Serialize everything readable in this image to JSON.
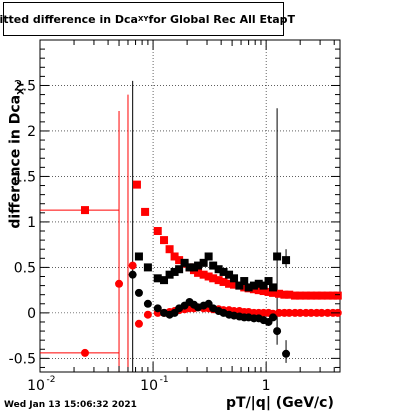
{
  "title": {
    "prefix": "Fitted difference in Dca",
    "subscript": "XY",
    "suffix": " for Global Rec All EtapT"
  },
  "timestamp": "Wed Jan 13 15:06:32 2021",
  "chart_data": {
    "type": "scatter",
    "title": "Fitted difference in Dca_XY for Global Rec All EtapT",
    "xlabel": "pT/|q| (GeV/c)",
    "ylabel_main": "difference in Dca",
    "ylabel_sub": "XY",
    "xscale": "log",
    "xlim": [
      0.01,
      4.5
    ],
    "ylim": [
      -0.65,
      3.0
    ],
    "grid": true,
    "x_ticks": [
      {
        "v": 0.01,
        "label": "10",
        "exp": "-2"
      },
      {
        "v": 0.1,
        "label": "10",
        "exp": "-1"
      },
      {
        "v": 1,
        "label": "1",
        "exp": ""
      }
    ],
    "y_ticks": [
      -0.5,
      0,
      0.5,
      1,
      1.5,
      2,
      2.5
    ],
    "series": [
      {
        "color": "#ff0000",
        "marker": "square",
        "points": [
          {
            "x": 0.025,
            "y": 1.13,
            "ex": [
              0.01,
              0.05
            ]
          },
          {
            "x": 0.072,
            "y": 1.41
          },
          {
            "x": 0.085,
            "y": 1.11
          },
          {
            "x": 0.11,
            "y": 0.9
          },
          {
            "x": 0.125,
            "y": 0.8
          },
          {
            "x": 0.14,
            "y": 0.7
          },
          {
            "x": 0.155,
            "y": 0.62
          },
          {
            "x": 0.17,
            "y": 0.58
          },
          {
            "x": 0.19,
            "y": 0.54
          },
          {
            "x": 0.21,
            "y": 0.5
          },
          {
            "x": 0.23,
            "y": 0.47
          },
          {
            "x": 0.25,
            "y": 0.44
          },
          {
            "x": 0.28,
            "y": 0.42
          },
          {
            "x": 0.31,
            "y": 0.4
          },
          {
            "x": 0.34,
            "y": 0.38
          },
          {
            "x": 0.38,
            "y": 0.36
          },
          {
            "x": 0.42,
            "y": 0.34
          },
          {
            "x": 0.47,
            "y": 0.32
          },
          {
            "x": 0.52,
            "y": 0.31
          },
          {
            "x": 0.58,
            "y": 0.3
          },
          {
            "x": 0.64,
            "y": 0.28
          },
          {
            "x": 0.7,
            "y": 0.27
          },
          {
            "x": 0.78,
            "y": 0.26
          },
          {
            "x": 0.86,
            "y": 0.25
          },
          {
            "x": 0.95,
            "y": 0.24
          },
          {
            "x": 1.05,
            "y": 0.23
          },
          {
            "x": 1.15,
            "y": 0.22
          },
          {
            "x": 1.3,
            "y": 0.21
          },
          {
            "x": 1.45,
            "y": 0.2
          },
          {
            "x": 1.6,
            "y": 0.2
          },
          {
            "x": 1.8,
            "y": 0.19
          },
          {
            "x": 2.0,
            "y": 0.19
          },
          {
            "x": 2.25,
            "y": 0.19
          },
          {
            "x": 2.5,
            "y": 0.19
          },
          {
            "x": 2.8,
            "y": 0.19
          },
          {
            "x": 3.1,
            "y": 0.19
          },
          {
            "x": 3.5,
            "y": 0.19
          },
          {
            "x": 3.9,
            "y": 0.19
          },
          {
            "x": 4.3,
            "y": 0.19
          }
        ]
      },
      {
        "color": "#ff0000",
        "marker": "circle",
        "points": [
          {
            "x": 0.025,
            "y": -0.44,
            "ex": [
              0.01,
              0.05
            ]
          },
          {
            "x": 0.05,
            "y": 0.32,
            "ey": [
              -0.65,
              2.22
            ]
          },
          {
            "x": 0.066,
            "y": 0.52
          },
          {
            "x": 0.075,
            "y": -0.12
          },
          {
            "x": 0.09,
            "y": -0.02
          },
          {
            "x": 0.11,
            "y": 0.0
          },
          {
            "x": 0.125,
            "y": 0.0
          },
          {
            "x": 0.14,
            "y": 0.01
          },
          {
            "x": 0.155,
            "y": 0.02
          },
          {
            "x": 0.17,
            "y": 0.03
          },
          {
            "x": 0.19,
            "y": 0.04
          },
          {
            "x": 0.21,
            "y": 0.05
          },
          {
            "x": 0.23,
            "y": 0.05
          },
          {
            "x": 0.25,
            "y": 0.06
          },
          {
            "x": 0.28,
            "y": 0.05
          },
          {
            "x": 0.31,
            "y": 0.05
          },
          {
            "x": 0.34,
            "y": 0.04
          },
          {
            "x": 0.38,
            "y": 0.04
          },
          {
            "x": 0.42,
            "y": 0.03
          },
          {
            "x": 0.47,
            "y": 0.03
          },
          {
            "x": 0.52,
            "y": 0.02
          },
          {
            "x": 0.58,
            "y": 0.02
          },
          {
            "x": 0.64,
            "y": 0.01
          },
          {
            "x": 0.7,
            "y": 0.01
          },
          {
            "x": 0.78,
            "y": 0.0
          },
          {
            "x": 0.86,
            "y": 0.0
          },
          {
            "x": 0.95,
            "y": 0.0
          },
          {
            "x": 1.05,
            "y": 0.0
          },
          {
            "x": 1.15,
            "y": -0.01
          },
          {
            "x": 1.3,
            "y": 0.0
          },
          {
            "x": 1.45,
            "y": 0.0
          },
          {
            "x": 1.6,
            "y": 0.0
          },
          {
            "x": 1.8,
            "y": 0.0
          },
          {
            "x": 2.0,
            "y": 0.0
          },
          {
            "x": 2.25,
            "y": 0.0
          },
          {
            "x": 2.5,
            "y": 0.0
          },
          {
            "x": 2.8,
            "y": 0.0
          },
          {
            "x": 3.1,
            "y": 0.0
          },
          {
            "x": 3.5,
            "y": 0.0
          },
          {
            "x": 3.9,
            "y": 0.0
          },
          {
            "x": 4.3,
            "y": 0.0
          }
        ]
      },
      {
        "color": "#000000",
        "marker": "square",
        "points": [
          {
            "x": 0.075,
            "y": 0.62
          },
          {
            "x": 0.09,
            "y": 0.5
          },
          {
            "x": 0.11,
            "y": 0.38
          },
          {
            "x": 0.125,
            "y": 0.36
          },
          {
            "x": 0.14,
            "y": 0.42
          },
          {
            "x": 0.155,
            "y": 0.45
          },
          {
            "x": 0.17,
            "y": 0.48
          },
          {
            "x": 0.19,
            "y": 0.55
          },
          {
            "x": 0.21,
            "y": 0.5
          },
          {
            "x": 0.23,
            "y": 0.5
          },
          {
            "x": 0.25,
            "y": 0.52
          },
          {
            "x": 0.28,
            "y": 0.55
          },
          {
            "x": 0.31,
            "y": 0.62
          },
          {
            "x": 0.34,
            "y": 0.52
          },
          {
            "x": 0.38,
            "y": 0.48
          },
          {
            "x": 0.42,
            "y": 0.45
          },
          {
            "x": 0.47,
            "y": 0.42
          },
          {
            "x": 0.52,
            "y": 0.38
          },
          {
            "x": 0.58,
            "y": 0.3
          },
          {
            "x": 0.64,
            "y": 0.35
          },
          {
            "x": 0.7,
            "y": 0.28
          },
          {
            "x": 0.78,
            "y": 0.3
          },
          {
            "x": 0.86,
            "y": 0.32
          },
          {
            "x": 0.95,
            "y": 0.3
          },
          {
            "x": 1.05,
            "y": 0.35
          },
          {
            "x": 1.15,
            "y": 0.28
          },
          {
            "x": 1.25,
            "y": 0.62,
            "ey": [
              -0.2,
              2.25
            ]
          },
          {
            "x": 1.5,
            "y": 0.58,
            "ey": [
              0.5,
              0.7
            ]
          }
        ]
      },
      {
        "color": "#000000",
        "marker": "circle",
        "points": [
          {
            "x": 0.066,
            "y": 0.42
          },
          {
            "x": 0.075,
            "y": 0.22
          },
          {
            "x": 0.09,
            "y": 0.1
          },
          {
            "x": 0.11,
            "y": 0.05
          },
          {
            "x": 0.125,
            "y": 0.0
          },
          {
            "x": 0.14,
            "y": -0.02
          },
          {
            "x": 0.155,
            "y": 0.0
          },
          {
            "x": 0.17,
            "y": 0.05
          },
          {
            "x": 0.19,
            "y": 0.08
          },
          {
            "x": 0.21,
            "y": 0.12
          },
          {
            "x": 0.23,
            "y": 0.09
          },
          {
            "x": 0.25,
            "y": 0.06
          },
          {
            "x": 0.28,
            "y": 0.08
          },
          {
            "x": 0.31,
            "y": 0.1
          },
          {
            "x": 0.34,
            "y": 0.05
          },
          {
            "x": 0.38,
            "y": 0.02
          },
          {
            "x": 0.42,
            "y": 0.0
          },
          {
            "x": 0.47,
            "y": -0.02
          },
          {
            "x": 0.52,
            "y": -0.03
          },
          {
            "x": 0.58,
            "y": -0.04
          },
          {
            "x": 0.64,
            "y": -0.05
          },
          {
            "x": 0.7,
            "y": -0.05
          },
          {
            "x": 0.78,
            "y": -0.06
          },
          {
            "x": 0.86,
            "y": -0.06
          },
          {
            "x": 0.95,
            "y": -0.08
          },
          {
            "x": 1.05,
            "y": -0.1
          },
          {
            "x": 1.15,
            "y": -0.05
          },
          {
            "x": 1.25,
            "y": -0.2,
            "ey": [
              -0.35,
              0.0
            ]
          },
          {
            "x": 1.5,
            "y": -0.45,
            "ey": [
              -0.55,
              -0.3
            ]
          }
        ]
      },
      {
        "color": "#ff0000",
        "marker": "none",
        "points": [
          {
            "x": 0.06,
            "y": 0.3,
            "ey": [
              -0.65,
              2.4
            ]
          }
        ]
      }
    ],
    "vlines": [
      {
        "x": 0.066,
        "color": "#000000",
        "ylim": [
          -0.65,
          2.55
        ]
      },
      {
        "x": 0.06,
        "color": "#000000",
        "ylim": [
          -0.65,
          0.8
        ]
      }
    ]
  }
}
